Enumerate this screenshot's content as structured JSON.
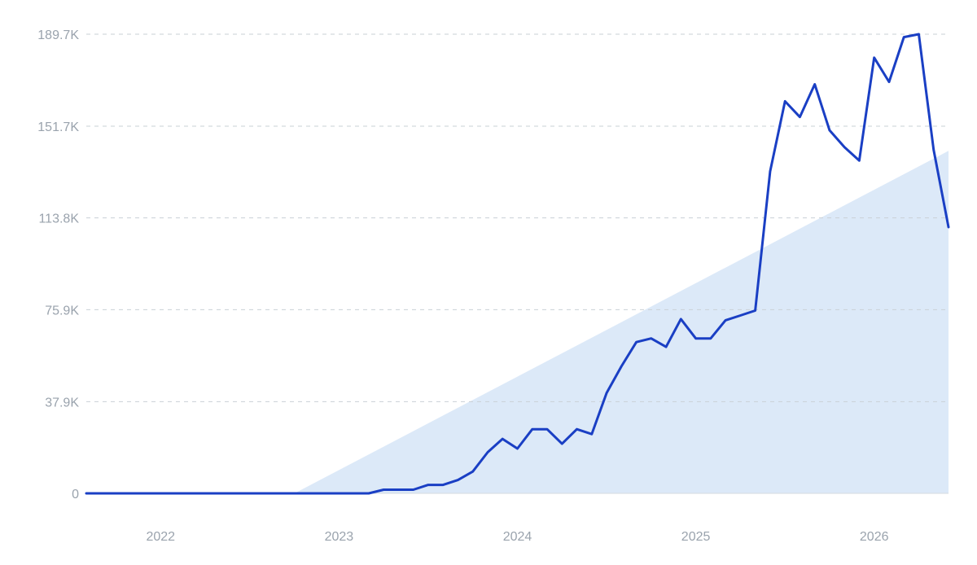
{
  "chart_data": {
    "type": "line",
    "y_ticks": [
      "0",
      "37.9K",
      "75.9K",
      "113.8K",
      "151.7K",
      "189.7K"
    ],
    "y_tick_values": [
      0,
      37900,
      75900,
      113800,
      151700,
      189700
    ],
    "ylim": [
      0,
      189700
    ],
    "x_ticks": [
      "2022",
      "2023",
      "2024",
      "2025",
      "2026"
    ],
    "x_tick_values": [
      "2022-03",
      "2023-03",
      "2024-03",
      "2025-03",
      "2026-03"
    ],
    "xlim": [
      "2021-10",
      "2026-08"
    ],
    "grid": true,
    "series": [
      {
        "color": "#1a3fc4",
        "x": [
          "2021-10",
          "2021-11",
          "2021-12",
          "2022-01",
          "2022-02",
          "2022-03",
          "2022-04",
          "2022-05",
          "2022-06",
          "2022-07",
          "2022-08",
          "2022-09",
          "2022-10",
          "2022-11",
          "2022-12",
          "2023-01",
          "2023-02",
          "2023-03",
          "2023-04",
          "2023-05",
          "2023-06",
          "2023-07",
          "2023-08",
          "2023-09",
          "2023-10",
          "2023-11",
          "2023-12",
          "2024-01",
          "2024-02",
          "2024-03",
          "2024-04",
          "2024-05",
          "2024-06",
          "2024-07",
          "2024-08",
          "2024-09",
          "2024-10",
          "2024-11",
          "2024-12",
          "2025-01",
          "2025-02",
          "2025-03",
          "2025-04",
          "2025-05",
          "2025-06",
          "2025-07",
          "2025-08",
          "2025-09",
          "2025-10",
          "2025-11",
          "2025-12",
          "2026-01",
          "2026-02",
          "2026-03",
          "2026-04",
          "2026-05",
          "2026-06",
          "2026-07",
          "2026-08"
        ],
        "values": [
          0,
          0,
          0,
          0,
          0,
          0,
          0,
          0,
          0,
          0,
          0,
          0,
          0,
          0,
          0,
          0,
          0,
          0,
          0,
          0,
          1500,
          1500,
          1500,
          3500,
          3500,
          5500,
          9000,
          17000,
          22500,
          18500,
          26500,
          26500,
          20500,
          26500,
          24500,
          41500,
          52500,
          62500,
          64000,
          60500,
          72000,
          64000,
          64000,
          71500,
          73500,
          75500,
          133000,
          162000,
          155500,
          169000,
          150000,
          143000,
          137500,
          180000,
          170000,
          188500,
          189700,
          142000,
          110000
        ]
      }
    ],
    "shaded_area": {
      "color": "#dce9f8",
      "x_start": "2022-12",
      "y_start": 0,
      "x_end": "2026-08",
      "y_end": 141500
    }
  }
}
